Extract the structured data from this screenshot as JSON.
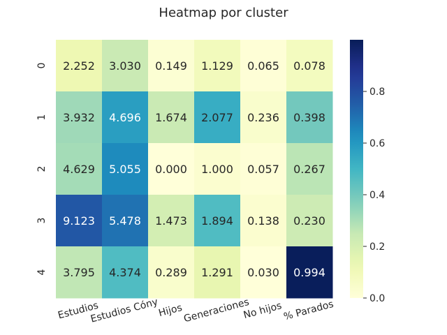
{
  "chart_data": {
    "type": "heatmap",
    "title": "Heatmap por cluster",
    "xlabel": "",
    "ylabel": "",
    "columns": [
      "Estudios",
      "Estudios Cóny",
      "Hijos",
      "Generaciones",
      "No hijos",
      "% Parados"
    ],
    "rows": [
      "0",
      "1",
      "2",
      "3",
      "4"
    ],
    "annotations": [
      [
        "2.252",
        "3.030",
        "0.149",
        "1.129",
        "0.065",
        "0.078"
      ],
      [
        "3.932",
        "4.696",
        "1.674",
        "2.077",
        "0.236",
        "0.398"
      ],
      [
        "4.629",
        "5.055",
        "0.000",
        "1.000",
        "0.057",
        "0.267"
      ],
      [
        "9.123",
        "5.478",
        "1.473",
        "1.894",
        "0.138",
        "0.230"
      ],
      [
        "3.795",
        "4.374",
        "0.289",
        "1.291",
        "0.030",
        "0.994"
      ]
    ],
    "color_values": [
      [
        0.12,
        0.24,
        0.02,
        0.09,
        0.01,
        0.08
      ],
      [
        0.32,
        0.58,
        0.24,
        0.53,
        0.04,
        0.4
      ],
      [
        0.31,
        0.64,
        0.0,
        0.03,
        0.01,
        0.27
      ],
      [
        0.77,
        0.7,
        0.21,
        0.47,
        0.03,
        0.23
      ],
      [
        0.26,
        0.47,
        0.04,
        0.14,
        0.0,
        0.994
      ]
    ],
    "colorbar": {
      "colormap": "YlGnBu",
      "range": [
        0,
        1
      ],
      "ticks": [
        "0.0",
        "0.2",
        "0.4",
        "0.6",
        "0.8"
      ]
    },
    "grid": false
  }
}
